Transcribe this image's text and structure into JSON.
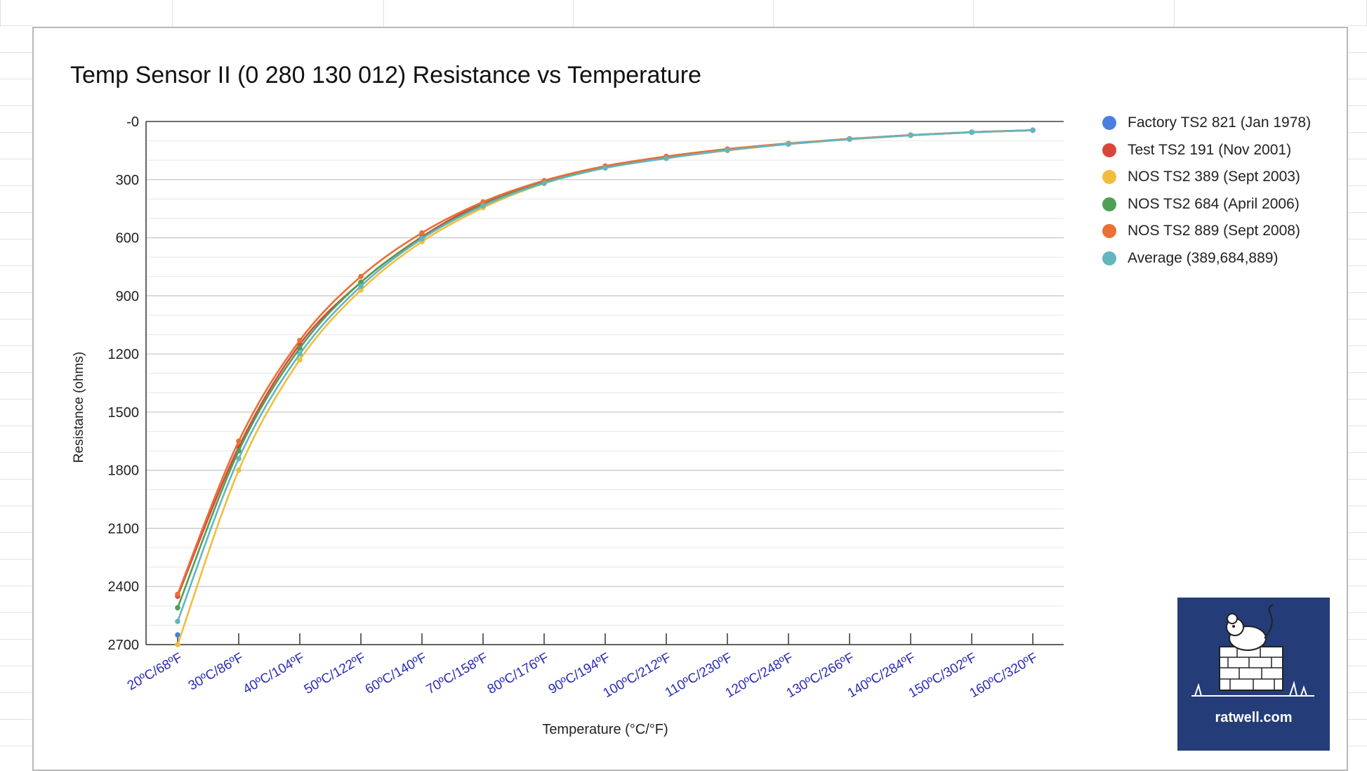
{
  "chart_data": {
    "type": "line",
    "title": "Temp Sensor II (0 280 130 012) Resistance vs Temperature",
    "xlabel": "Temperature (°C/°F)",
    "ylabel": "Resistance (ohms)",
    "y_axis_reversed": true,
    "ylim": [
      0,
      2700
    ],
    "yticks": [
      "-0",
      "300",
      "600",
      "900",
      "1200",
      "1500",
      "1800",
      "2100",
      "2400",
      "2700"
    ],
    "categories": [
      "20ºC/68ºF",
      "30ºC/86ºF",
      "40ºC/104ºF",
      "50ºC/122ºF",
      "60ºC/140ºF",
      "70ºC/158ºF",
      "80ºC/176ºF",
      "90ºC/194ºF",
      "100ºC/212ºF",
      "110ºC/230ºF",
      "120ºC/248ºF",
      "130ºC/266ºF",
      "140ºC/284ºF",
      "150ºC/302ºF",
      "160ºC/320ºF"
    ],
    "grid": true,
    "legend_position": "right",
    "series": [
      {
        "name": "Factory TS2 821 (Jan 1978)",
        "color": "#4a7fe0",
        "values": [
          2650,
          null,
          null,
          null,
          null,
          null,
          null,
          null,
          null,
          null,
          null,
          null,
          null,
          null,
          null
        ]
      },
      {
        "name": "Test TS2 191 (Nov 2001)",
        "color": "#d9473b",
        "values": [
          2450,
          1680,
          1150,
          830,
          595,
          420,
          310,
          235,
          185,
          145,
          115,
          90,
          70,
          55,
          45
        ]
      },
      {
        "name": "NOS TS2 389 (Sept 2003)",
        "color": "#f2bd3e",
        "values": [
          2700,
          1800,
          1230,
          870,
          620,
          445,
          320,
          240,
          190,
          150,
          117,
          92,
          72,
          56,
          46
        ]
      },
      {
        "name": "NOS TS2 684 (April 2006)",
        "color": "#4f9f55",
        "values": [
          2510,
          1700,
          1170,
          830,
          600,
          430,
          315,
          237,
          187,
          147,
          116,
          91,
          71,
          56,
          45
        ]
      },
      {
        "name": "NOS TS2 889 (Sept 2008)",
        "color": "#ea7035",
        "values": [
          2440,
          1650,
          1130,
          800,
          575,
          415,
          305,
          230,
          180,
          142,
          113,
          89,
          70,
          55,
          45
        ]
      },
      {
        "name": "Average (389,684,889)",
        "color": "#62b6c0",
        "values": [
          2580,
          1740,
          1200,
          850,
          605,
          435,
          318,
          240,
          190,
          148,
          116,
          91,
          71,
          56,
          45
        ]
      }
    ]
  },
  "logo": {
    "text": "ratwell.com"
  }
}
